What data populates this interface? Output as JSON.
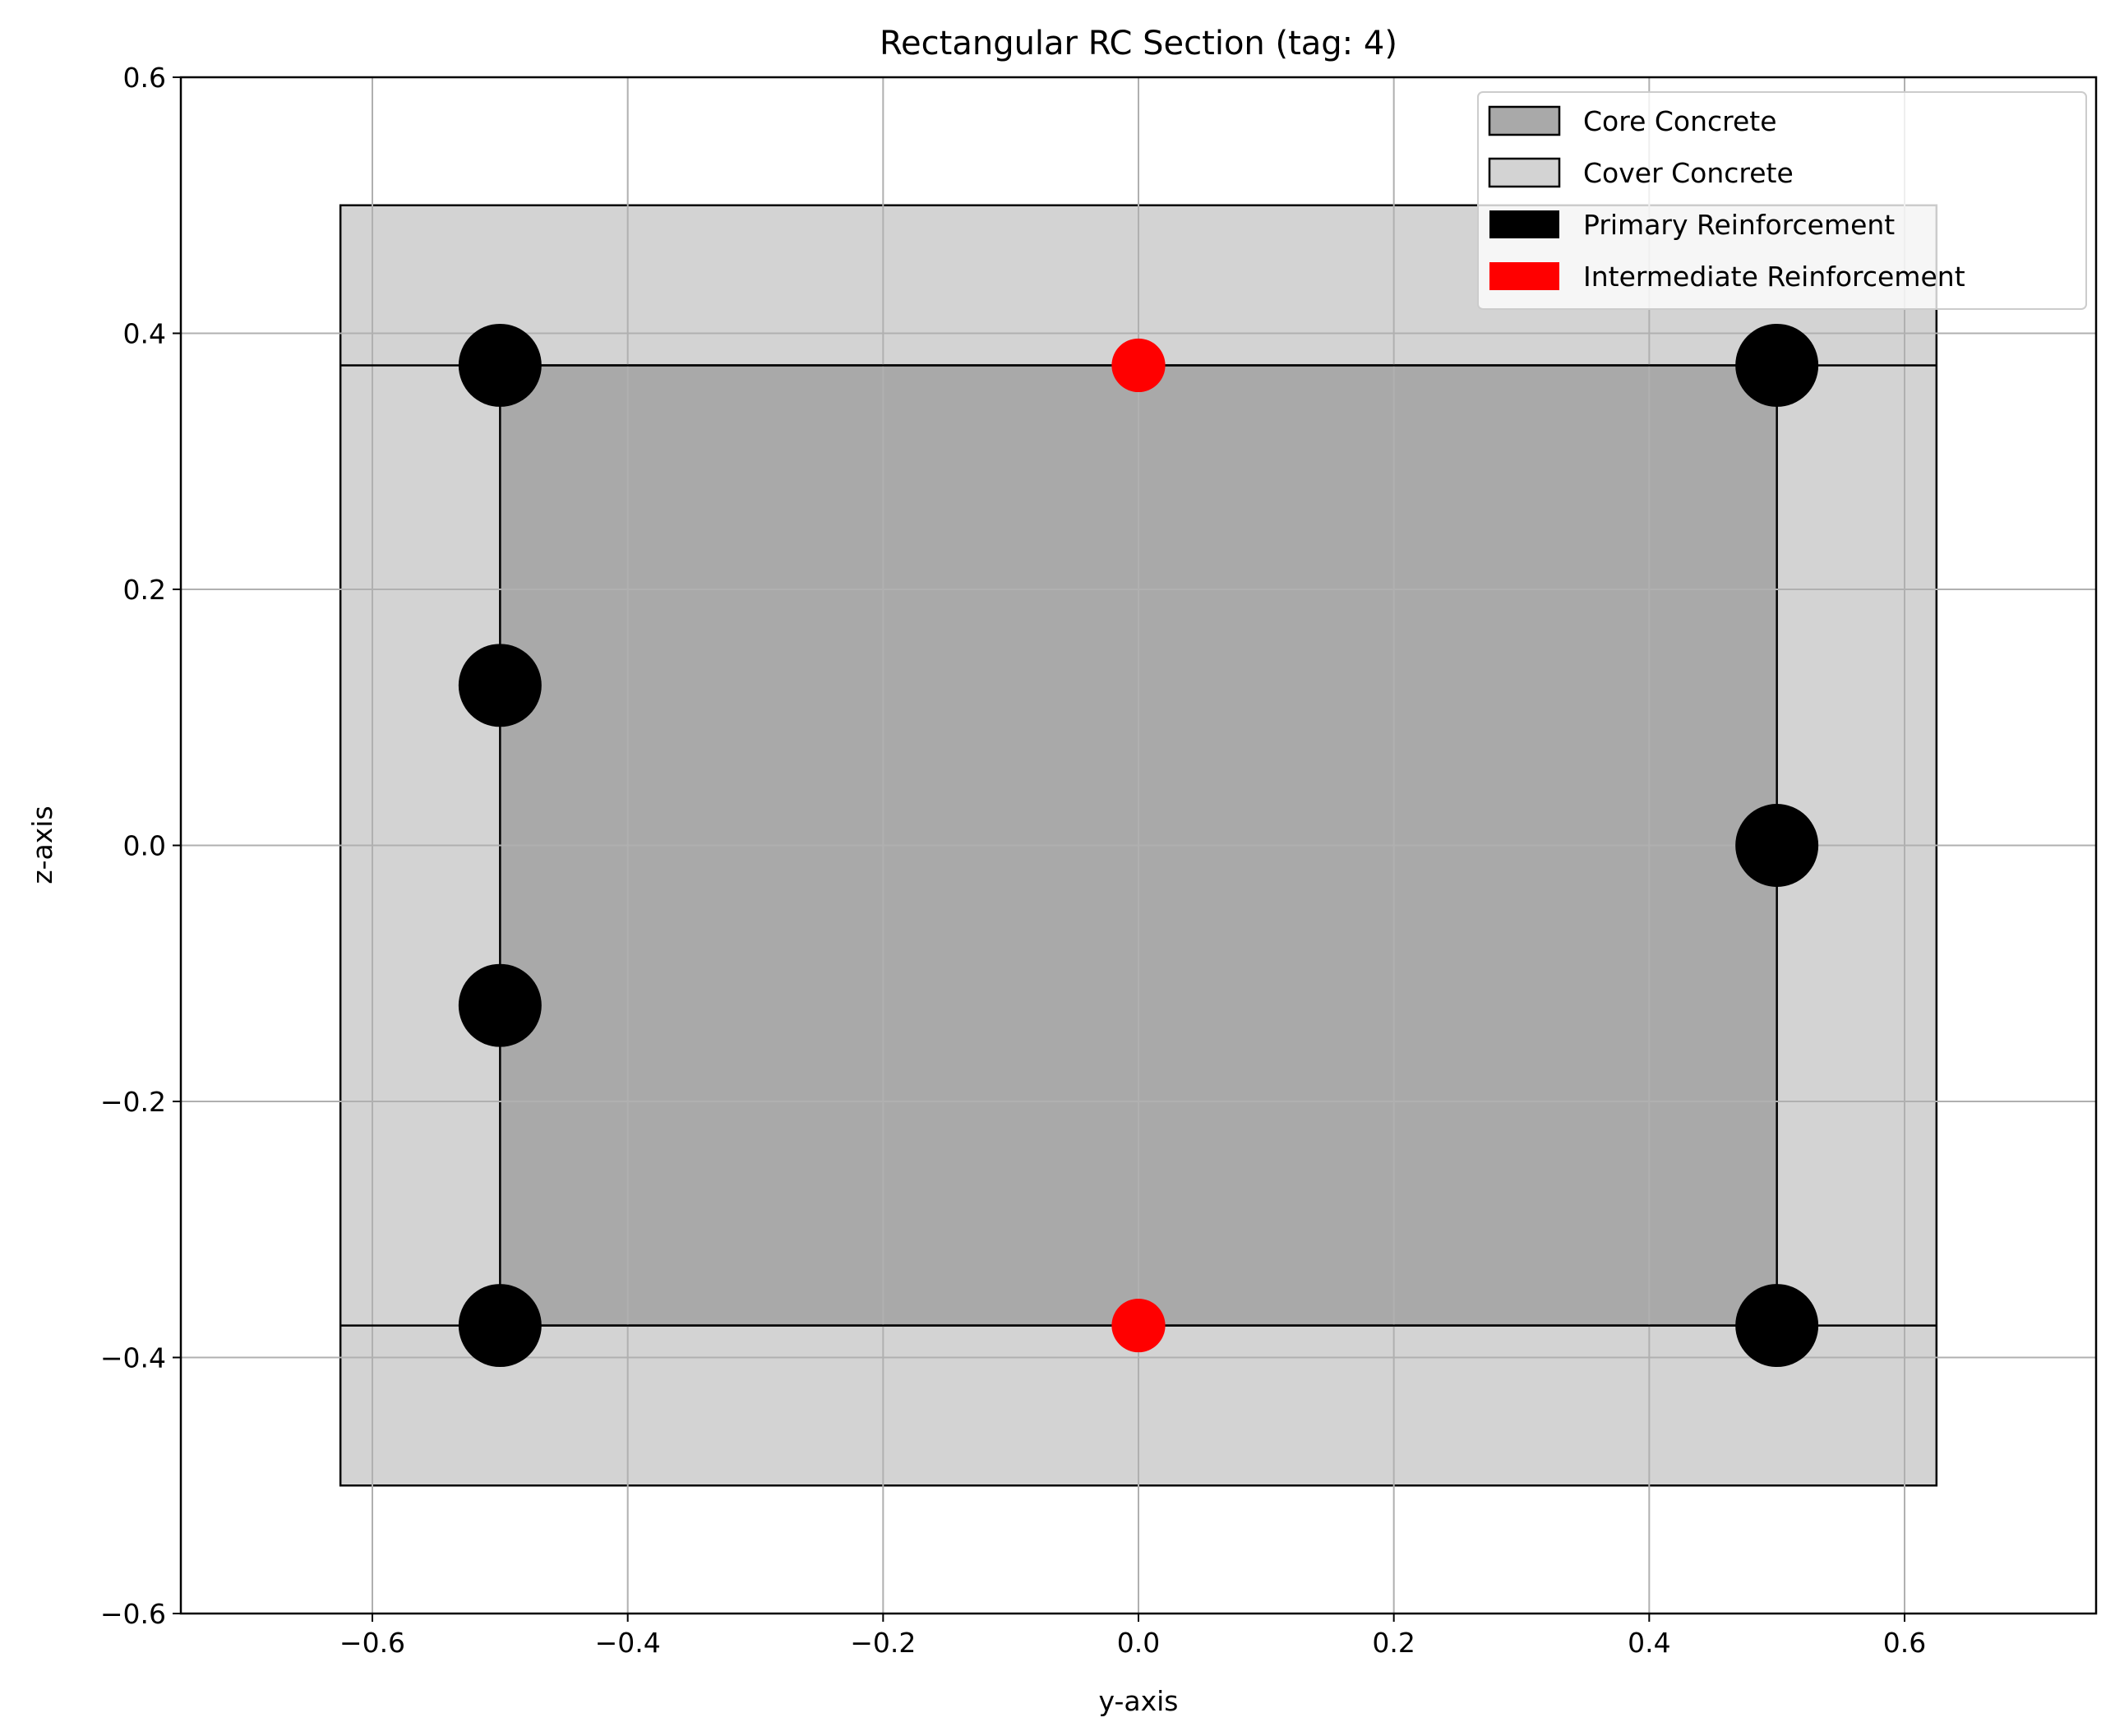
{
  "chart_data": {
    "type": "scatter",
    "title": "Rectangular RC Section (tag: 4)",
    "xlabel": "y-axis",
    "ylabel": "z-axis",
    "xlim": [
      -0.75,
      0.75
    ],
    "ylim": [
      -0.6,
      0.6
    ],
    "grid": true,
    "legend_position": "top-right",
    "x_ticks": [
      -0.6,
      -0.4,
      -0.2,
      0.0,
      0.2,
      0.4,
      0.6
    ],
    "x_tick_labels": [
      "−0.6",
      "−0.4",
      "−0.2",
      "0.0",
      "0.2",
      "0.4",
      "0.6"
    ],
    "y_ticks": [
      -0.6,
      -0.4,
      -0.2,
      0.0,
      0.2,
      0.4,
      0.6
    ],
    "y_tick_labels": [
      "−0.6",
      "−0.4",
      "−0.2",
      "0.0",
      "0.2",
      "0.4",
      "0.6"
    ],
    "regions": [
      {
        "name": "Cover Concrete",
        "color": "#d3d3d3",
        "edge_color": "#000000",
        "y_range": [
          -0.625,
          0.625
        ],
        "z_range": [
          -0.5,
          0.5
        ]
      },
      {
        "name": "Core Concrete",
        "color": "#a9a9a9",
        "edge_color": "#000000",
        "y_range": [
          -0.5,
          0.5
        ],
        "z_range": [
          -0.375,
          0.375
        ]
      }
    ],
    "series": [
      {
        "name": "Primary Reinforcement",
        "color": "#000000",
        "diameter": 0.065,
        "points": [
          {
            "y": -0.5,
            "z": 0.375
          },
          {
            "y": -0.5,
            "z": 0.125
          },
          {
            "y": -0.5,
            "z": -0.125
          },
          {
            "y": -0.5,
            "z": -0.375
          },
          {
            "y": 0.5,
            "z": 0.375
          },
          {
            "y": 0.5,
            "z": 0.0
          },
          {
            "y": 0.5,
            "z": -0.375
          }
        ]
      },
      {
        "name": "Intermediate Reinforcement",
        "color": "#ff0000",
        "diameter": 0.042,
        "points": [
          {
            "y": 0.0,
            "z": 0.375
          },
          {
            "y": 0.0,
            "z": -0.375
          }
        ]
      }
    ],
    "legend": [
      {
        "label": "Core Concrete",
        "color": "#a9a9a9",
        "outlined": true
      },
      {
        "label": "Cover Concrete",
        "color": "#d3d3d3",
        "outlined": true
      },
      {
        "label": "Primary Reinforcement",
        "color": "#000000",
        "outlined": false
      },
      {
        "label": "Intermediate Reinforcement",
        "color": "#ff0000",
        "outlined": false
      }
    ]
  }
}
